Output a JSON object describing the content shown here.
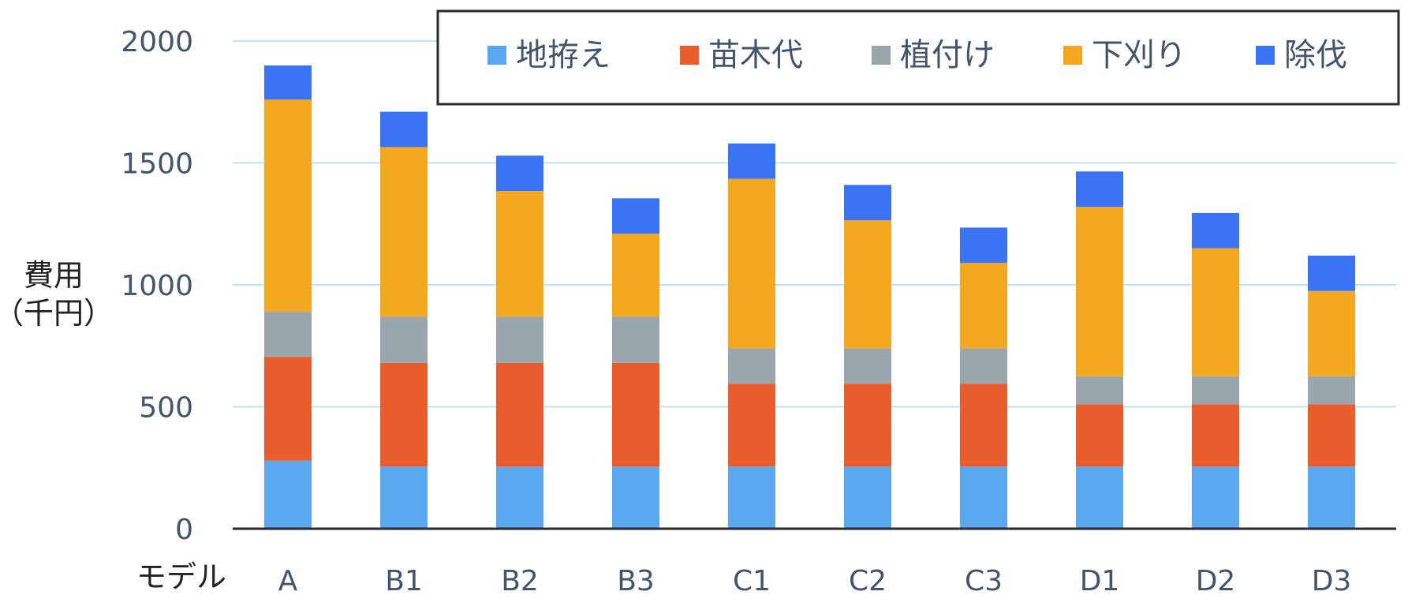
{
  "chart_data": {
    "type": "bar",
    "stacked": true,
    "categories": [
      "A",
      "B1",
      "B2",
      "B3",
      "C1",
      "C2",
      "C3",
      "D1",
      "D2",
      "D3"
    ],
    "series": [
      {
        "name": "地拵え",
        "color": "#5aa9f0",
        "values": [
          280,
          255,
          255,
          255,
          255,
          255,
          255,
          255,
          255,
          255
        ]
      },
      {
        "name": "苗木代",
        "color": "#e95d2d",
        "values": [
          425,
          425,
          425,
          425,
          340,
          340,
          340,
          255,
          255,
          255
        ]
      },
      {
        "name": "植付け",
        "color": "#9aa6ab",
        "values": [
          185,
          190,
          190,
          190,
          145,
          145,
          145,
          115,
          115,
          115
        ]
      },
      {
        "name": "下刈り",
        "color": "#f4a81f",
        "values": [
          870,
          695,
          515,
          340,
          695,
          525,
          350,
          695,
          525,
          350
        ]
      },
      {
        "name": "除伐",
        "color": "#3a74f4",
        "values": [
          140,
          145,
          145,
          145,
          145,
          145,
          145,
          145,
          145,
          145
        ]
      }
    ],
    "ylabel_line1": "費用",
    "ylabel_line2": "（千円）",
    "xlabel": "モデル",
    "ylim": [
      0,
      2000
    ],
    "yticks": [
      0,
      500,
      1000,
      1500,
      2000
    ],
    "grid": true,
    "legend_position": "top"
  },
  "colors": {
    "grid": "#bfe3f2",
    "axis": "#2b2b2b",
    "tick_text": "#44546a"
  }
}
